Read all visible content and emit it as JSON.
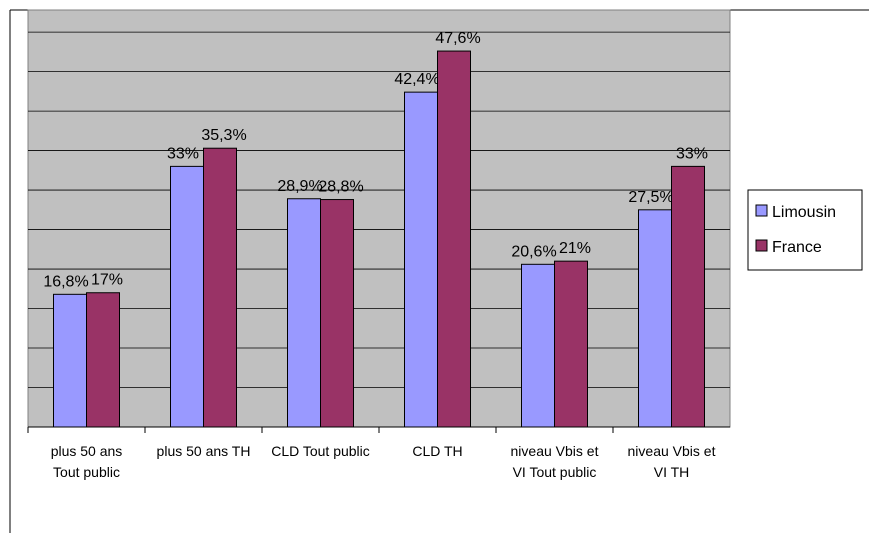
{
  "chart_data": {
    "type": "bar",
    "categories": [
      "plus 50 ans Tout public",
      "plus 50 ans TH",
      "CLD Tout public",
      "CLD TH",
      "niveau Vbis et VI Tout public",
      "niveau Vbis et VI TH"
    ],
    "series": [
      {
        "name": "Limousin",
        "color": "#9999ff",
        "values": [
          16.8,
          33,
          28.9,
          42.4,
          20.6,
          27.5
        ],
        "value_labels": [
          "16,8%",
          "33%",
          "28,9%",
          "42,4%",
          "20,6%",
          "27,5%"
        ]
      },
      {
        "name": "France",
        "color": "#993366",
        "values": [
          17,
          35.3,
          28.8,
          47.6,
          21,
          33
        ],
        "value_labels": [
          "17%",
          "35,3%",
          "28,8%",
          "47,6%",
          "21%",
          "33%"
        ]
      }
    ],
    "ylim": [
      0,
      52.8
    ],
    "yticks": [
      0,
      5,
      10,
      15,
      20,
      25,
      30,
      35,
      40,
      45,
      50
    ],
    "grid": true,
    "legend": "right"
  }
}
